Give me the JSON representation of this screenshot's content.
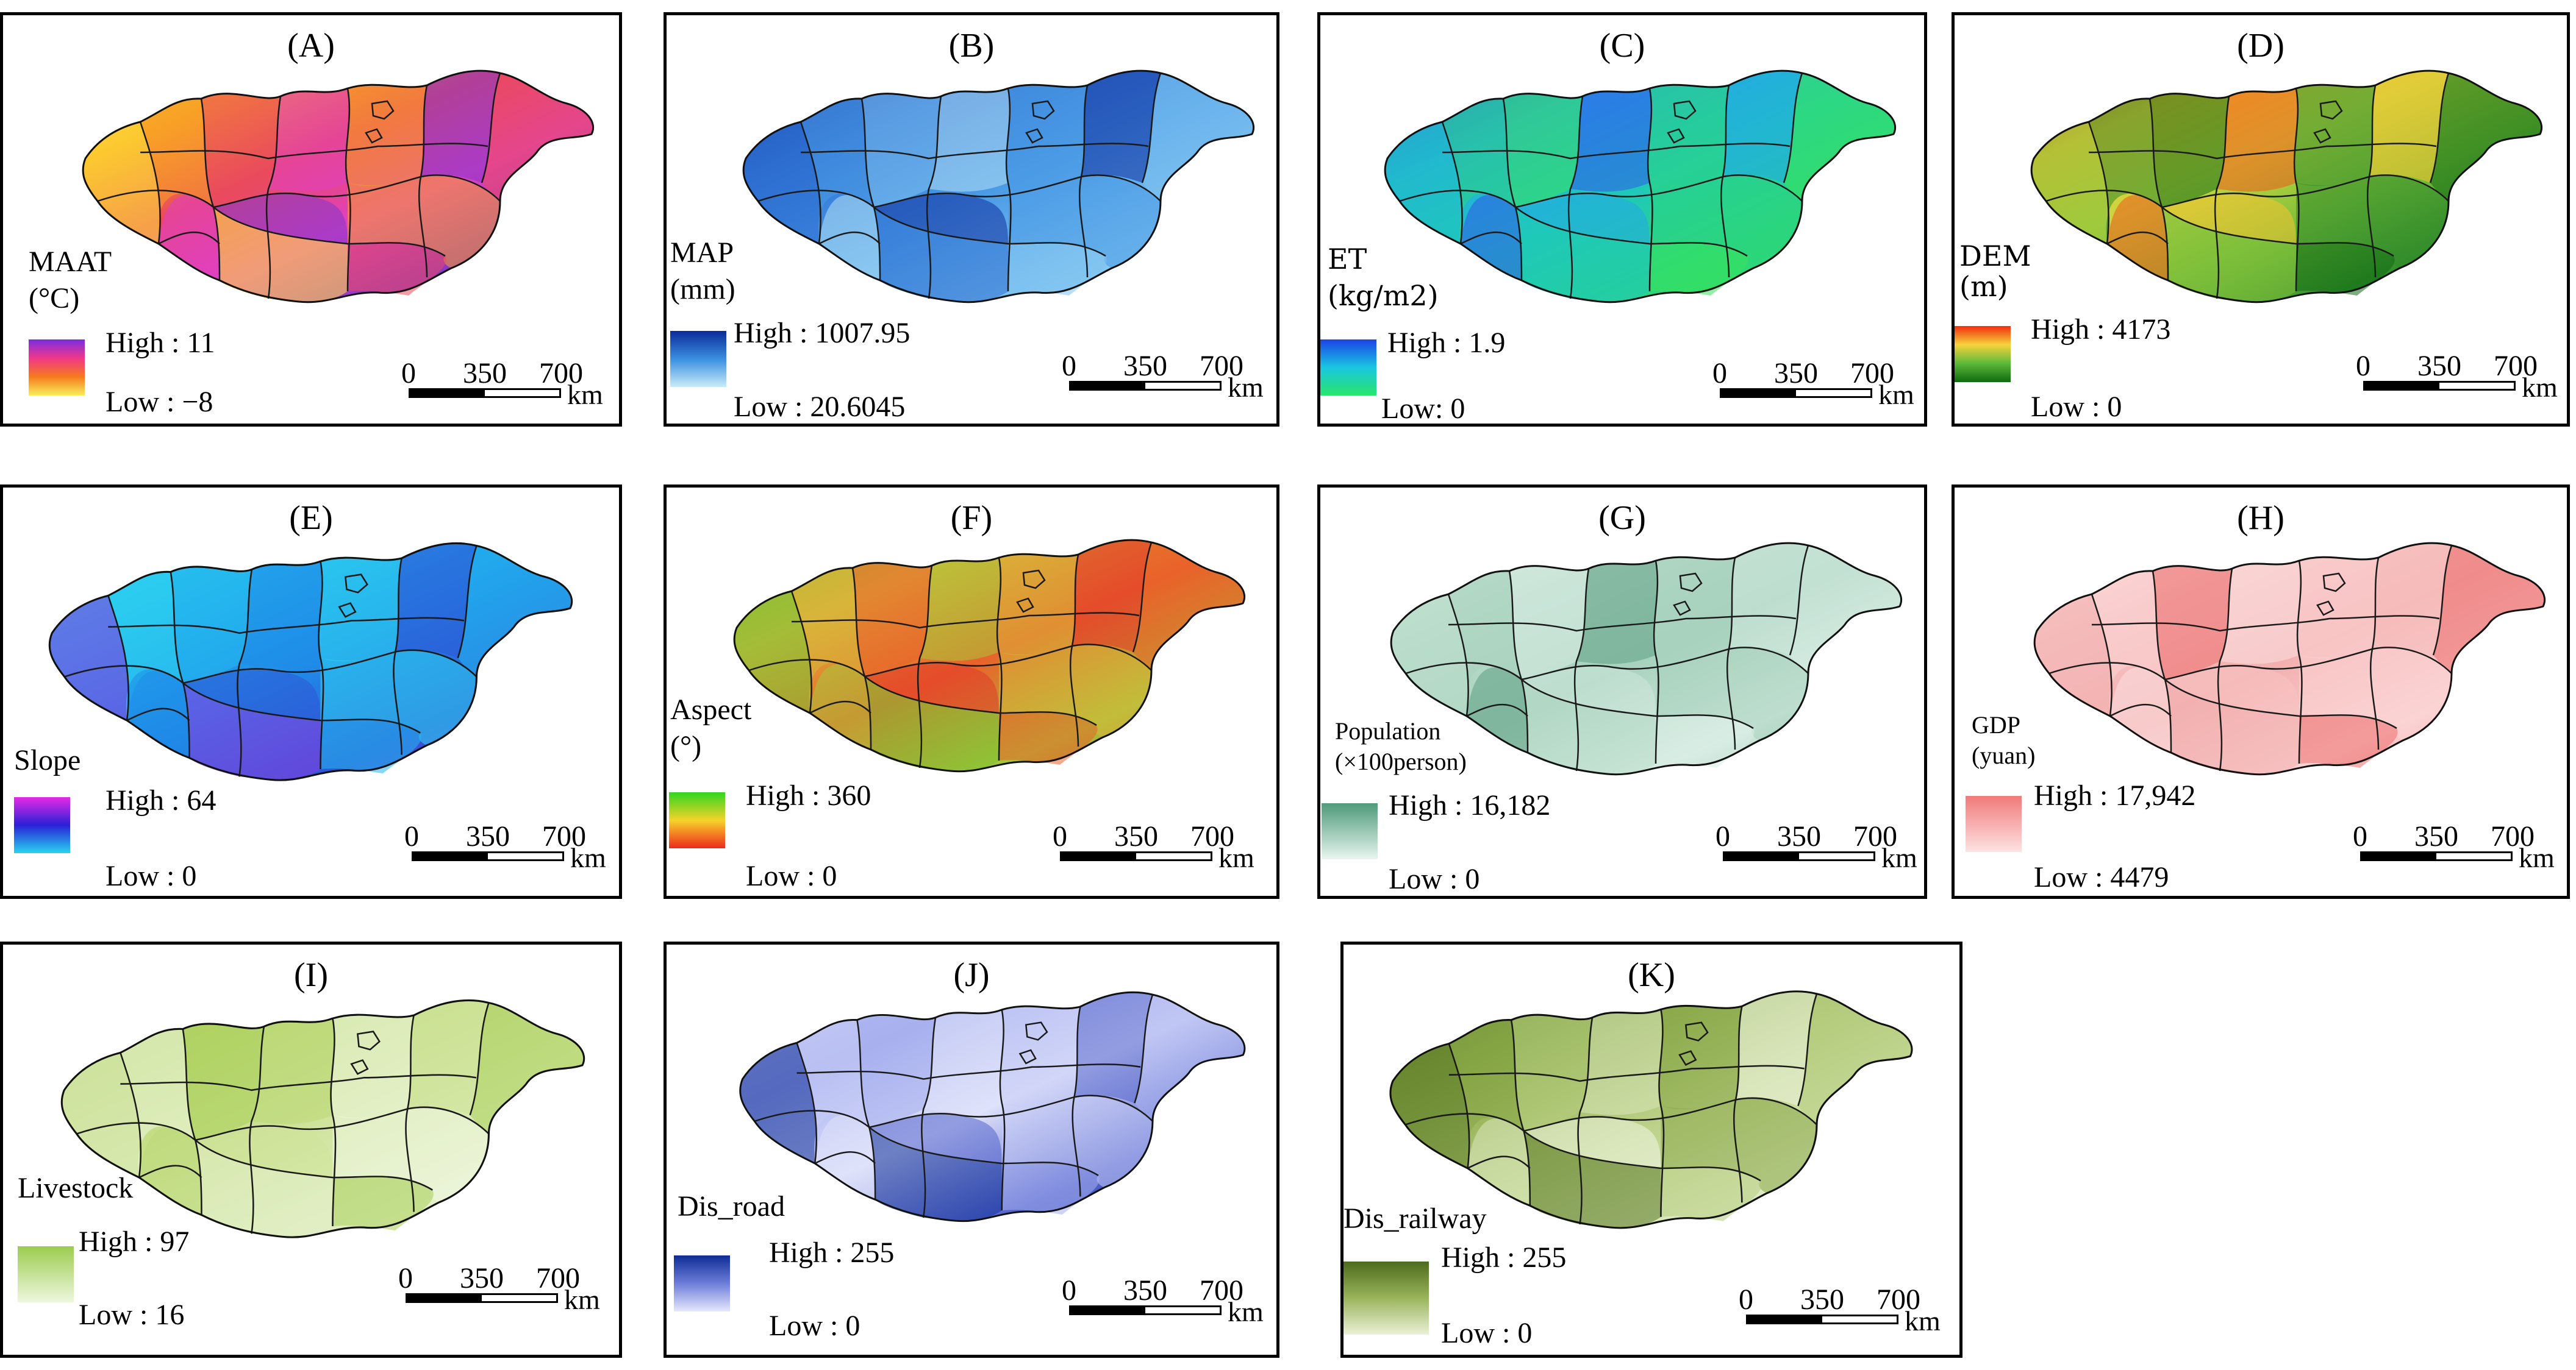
{
  "scale_bar": {
    "ticks": [
      "0",
      "350",
      "700"
    ],
    "unit": "km"
  },
  "panels": [
    {
      "id": "A",
      "title": "(A)",
      "variable": "MAAT\n(°C)",
      "high": "High : 11",
      "low": "Low : −8",
      "legend_colors": [
        "#7a2de0",
        "#f0388a",
        "#f57a1c",
        "#f9ef5c"
      ],
      "map_colors": [
        "#ffe83a",
        "#f8a126",
        "#ea4a5d",
        "#e040c6",
        "#8237c8",
        "#4a2b9e"
      ]
    },
    {
      "id": "B",
      "title": "(B)",
      "variable": "MAP\n(mm)",
      "high": "High : 1007.95",
      "low": "Low : 20.6045",
      "legend_colors": [
        "#0b2a9a",
        "#3a8ee0",
        "#c9ecf8"
      ],
      "map_colors": [
        "#132f9e",
        "#2e6fd1",
        "#4a9be6",
        "#7fc3f0",
        "#b5e2f6"
      ]
    },
    {
      "id": "C",
      "title": "(C)",
      "variable": "ET\n(kg/m2)",
      "high": "High : 1.9",
      "low": "Low: 0",
      "legend_colors": [
        "#1c43e6",
        "#19c6e0",
        "#27e66a"
      ],
      "map_colors": [
        "#2f5ae8",
        "#25a8e6",
        "#1fc9b9",
        "#2bd67c",
        "#38e35a"
      ]
    },
    {
      "id": "D",
      "title": "(D)",
      "variable": "DEM\n(m)",
      "high": "High : 4173",
      "low": "Low : 0",
      "legend_colors": [
        "#f02e0f",
        "#f6d33b",
        "#5db93a",
        "#0d6a0f"
      ],
      "map_colors": [
        "#ef5a1a",
        "#f5c232",
        "#c8d740",
        "#7dbf3a",
        "#2f8b2a",
        "#0f6a14"
      ]
    },
    {
      "id": "E",
      "title": "(E)",
      "variable": "Slope",
      "high": "High : 64",
      "low": "Low : 0",
      "legend_colors": [
        "#e62ae6",
        "#2a1fd6",
        "#28d6ee"
      ],
      "map_colors": [
        "#2fd6f0",
        "#25b8ee",
        "#1f8ce8",
        "#2f55d6",
        "#8a3ce0"
      ]
    },
    {
      "id": "F",
      "title": "(F)",
      "variable": "Aspect\n(°)",
      "high": "High : 360",
      "low": "Low : 0",
      "legend_colors": [
        "#2fd61e",
        "#f6d32a",
        "#ee2a1a"
      ],
      "map_colors": [
        "#7ac235",
        "#d9b43a",
        "#e9622a",
        "#a5c83a",
        "#e23a2a"
      ]
    },
    {
      "id": "G",
      "title": "(G)",
      "variable": "Population\n(×100person)",
      "high": "High : 16,182",
      "low": "Low : 0",
      "legend_colors": [
        "#4f9a7a",
        "#e8f5ef"
      ],
      "map_colors": [
        "#cfe7dc",
        "#b9dccb",
        "#a7d2bd",
        "#d9ede3",
        "#5e9f84"
      ]
    },
    {
      "id": "H",
      "title": "(H)",
      "variable": "GDP\n(yuan)",
      "high": "High : 17,942",
      "low": "Low : 4479",
      "legend_colors": [
        "#f07a7a",
        "#fde2e2"
      ],
      "map_colors": [
        "#fce0e0",
        "#f7c3c3",
        "#f3b0b0",
        "#fbd3d3",
        "#ed6d6d"
      ]
    },
    {
      "id": "I",
      "title": "(I)",
      "variable": "Livestock",
      "high": "High : 97",
      "low": "Low : 16",
      "legend_colors": [
        "#9ccc4f",
        "#eef7df"
      ],
      "map_colors": [
        "#a9d05a",
        "#bcd876",
        "#cfe39b",
        "#e2efc6",
        "#f1f8e2"
      ]
    },
    {
      "id": "J",
      "title": "(J)",
      "variable": "Dis_road",
      "high": "High : 255",
      "low": "Low : 0",
      "legend_colors": [
        "#0d2c96",
        "#6e7ed9",
        "#e6e8fb"
      ],
      "map_colors": [
        "#c7ccf5",
        "#a8b1ee",
        "#dfe2fa",
        "#5364cc",
        "#102f98"
      ]
    },
    {
      "id": "K",
      "title": "(K)",
      "variable": "Dis_railway",
      "high": "High : 255",
      "low": "Low : 0",
      "legend_colors": [
        "#4c6b1c",
        "#9ab45c",
        "#eaf1d8"
      ],
      "map_colors": [
        "#5b7a26",
        "#87a646",
        "#b7cd80",
        "#dbe8bd",
        "#f1f6e4"
      ]
    }
  ]
}
